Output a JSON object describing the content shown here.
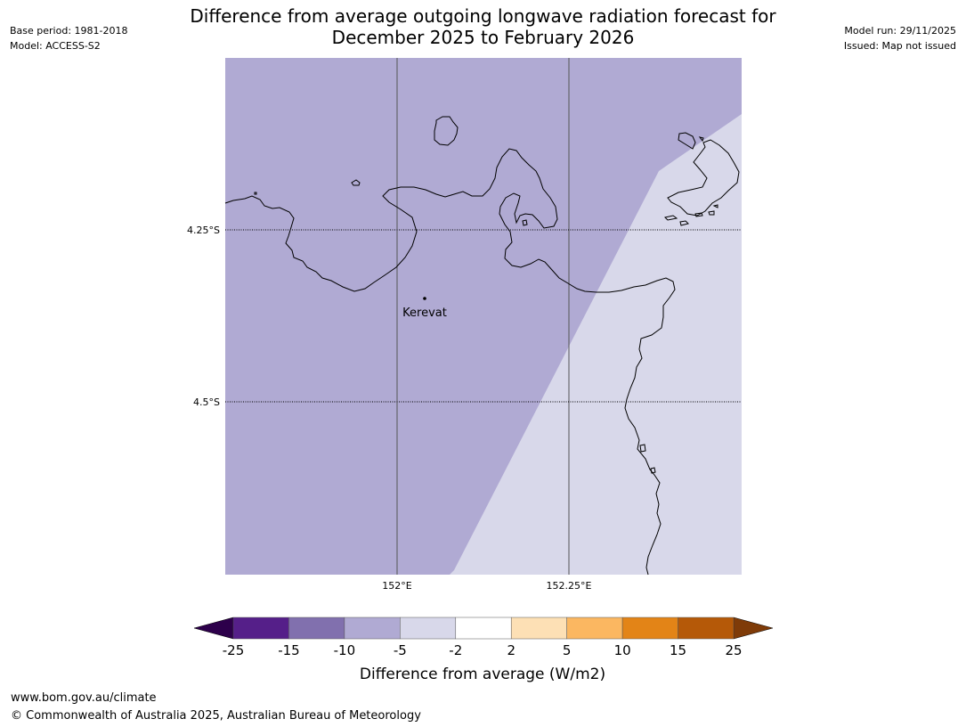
{
  "meta": {
    "base_period": "Base period: 1981-2018",
    "model": "Model: ACCESS-S2",
    "model_run": "Model run: 29/11/2025",
    "issued": "Issued: Map not issued"
  },
  "title": {
    "line1": "Difference from average outgoing longwave radiation forecast for",
    "line2": "December 2025 to February 2026"
  },
  "map": {
    "land_fill_color": "#b0aad3",
    "sea_fill_color": "#d8d8ea",
    "coastline_color": "#000000",
    "gridlines": {
      "latitudes": [
        {
          "value": -4.25,
          "label": "4.25°S"
        },
        {
          "value": -4.5,
          "label": "4.5°S"
        }
      ],
      "longitudes": [
        {
          "value": 152.0,
          "label": "152°E"
        },
        {
          "value": 152.25,
          "label": "152.25°E"
        }
      ]
    },
    "places": [
      {
        "name": "Kerevat",
        "lon": 152.04,
        "lat": -4.35
      }
    ]
  },
  "colorbar": {
    "label": "Difference from average (W/m2)",
    "ticks": [
      "-25",
      "-15",
      "-10",
      "-5",
      "-2",
      "2",
      "5",
      "10",
      "15",
      "25"
    ],
    "colors": [
      "#551f89",
      "#8170ae",
      "#b0aad3",
      "#d8d8ea",
      "#ffffff",
      "#fde0b5",
      "#fbb761",
      "#e38417",
      "#b55908"
    ],
    "under_color": "#2d004b",
    "over_color": "#7f3b08"
  },
  "footer": {
    "url": "www.bom.gov.au/climate",
    "copyright": "© Commonwealth of Australia 2025, Australian Bureau of Meteorology"
  }
}
